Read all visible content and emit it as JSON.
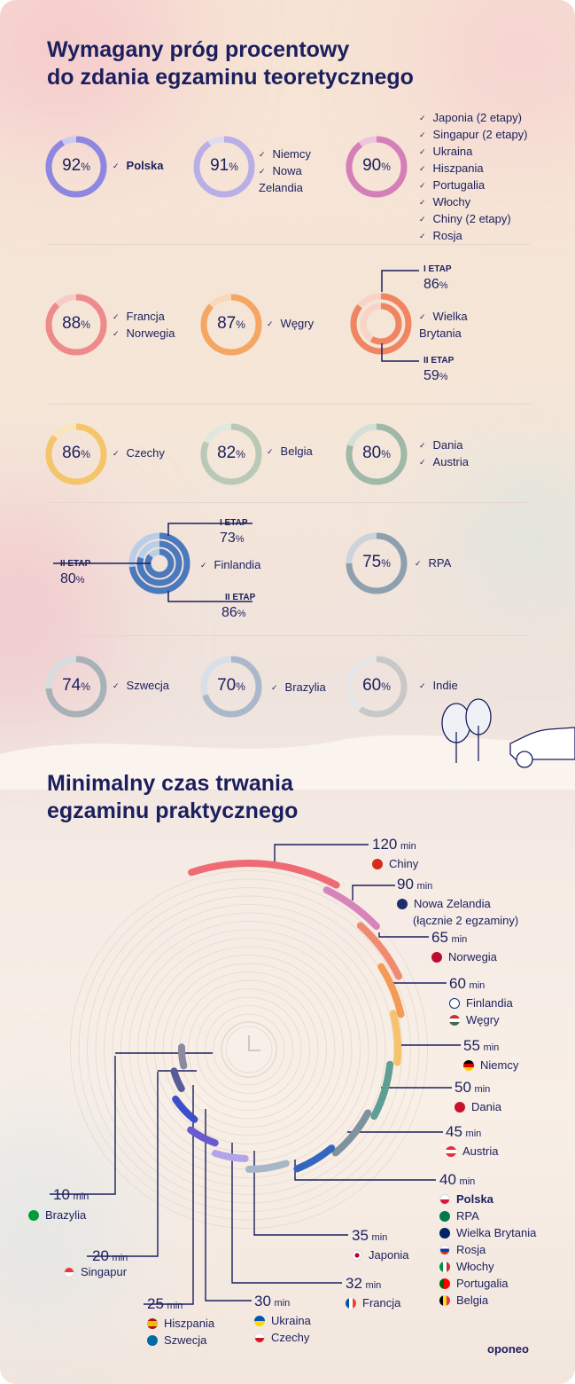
{
  "section1": {
    "title_line1": "Wymagany próg procentowy",
    "title_line2": "do zdania egzaminu teoretycznego"
  },
  "section2": {
    "title_line1": "Minimalny czas trwania",
    "title_line2": "egzaminu praktycznego"
  },
  "percent_unit": "%",
  "unit_min": "min",
  "stage1_label": "I ETAP",
  "stage2_label": "II ETAP",
  "logo": "oponeo",
  "chart_data": [
    {
      "type": "donut-grid",
      "title": "Wymagany próg procentowy do zdania egzaminu teoretycznego",
      "items": [
        {
          "value": 92,
          "countries": [
            "Polska"
          ],
          "color": "#8e86e0"
        },
        {
          "value": 91,
          "countries": [
            "Niemcy",
            "Nowa Zelandia"
          ],
          "color": "#b9aee6"
        },
        {
          "value": 90,
          "countries": [
            "Japonia (2 etapy)",
            "Singapur (2 etapy)",
            "Ukraina",
            "Hiszpania",
            "Portugalia",
            "Włochy",
            "Chiny (2 etapy)",
            "Rosja"
          ],
          "color": "#d57fb8"
        },
        {
          "value": 88,
          "countries": [
            "Francja",
            "Norwegia"
          ],
          "color": "#ef8a8a"
        },
        {
          "value": 87,
          "countries": [
            "Węgry"
          ],
          "color": "#f5a663"
        },
        {
          "values": [
            86,
            59
          ],
          "countries": [
            "Wielka Brytania"
          ],
          "color": "#ef8561"
        },
        {
          "value": 86,
          "countries": [
            "Czechy"
          ],
          "color": "#f5c56c"
        },
        {
          "value": 82,
          "countries": [
            "Belgia"
          ],
          "color": "#b9c9b5"
        },
        {
          "value": 80,
          "countries": [
            "Dania",
            "Austria"
          ],
          "color": "#9fb8a8"
        },
        {
          "values": [
            73,
            80,
            86
          ],
          "countries": [
            "Finlandia"
          ],
          "color": "#4a79be"
        },
        {
          "value": 75,
          "countries": [
            "RPA"
          ],
          "color": "#8ea0ad"
        },
        {
          "value": 74,
          "countries": [
            "Szwecja"
          ],
          "color": "#a7b1b8"
        },
        {
          "value": 70,
          "countries": [
            "Brazylia"
          ],
          "color": "#a9b8cb"
        },
        {
          "value": 60,
          "countries": [
            "Indie"
          ],
          "color": "#c8c8c8"
        }
      ]
    },
    {
      "type": "radial-bar",
      "title": "Minimalny czas trwania egzaminu praktycznego",
      "unit": "min",
      "items": [
        {
          "value": 120,
          "countries": [
            "Chiny"
          ],
          "color": "#ee6b74"
        },
        {
          "value": 90,
          "countries": [
            "Nowa Zelandia",
            "(łącznie 2 egzaminy)"
          ],
          "color": "#d784ba"
        },
        {
          "value": 65,
          "countries": [
            "Norwegia"
          ],
          "color": "#f08a70"
        },
        {
          "value": 60,
          "countries": [
            "Finlandia",
            "Węgry"
          ],
          "color": "#f39a57"
        },
        {
          "value": 55,
          "countries": [
            "Niemcy"
          ],
          "color": "#f6c26c"
        },
        {
          "value": 50,
          "countries": [
            "Dania"
          ],
          "color": "#5f9e93"
        },
        {
          "value": 45,
          "countries": [
            "Austria"
          ],
          "color": "#7f939e"
        },
        {
          "value": 40,
          "countries": [
            "Polska",
            "RPA",
            "Wielka Brytania",
            "Rosja",
            "Włochy",
            "Portugalia",
            "Belgia"
          ],
          "color": "#3466c0"
        },
        {
          "value": 35,
          "countries": [
            "Japonia"
          ],
          "color": "#a7b7c7"
        },
        {
          "value": 32,
          "countries": [
            "Francja"
          ],
          "color": "#b2a4e8"
        },
        {
          "value": 30,
          "countries": [
            "Ukraina",
            "Czechy"
          ],
          "color": "#6a5ad1"
        },
        {
          "value": 25,
          "countries": [
            "Hiszpania",
            "Szwecja"
          ],
          "color": "#3d4fc8"
        },
        {
          "value": 20,
          "countries": [
            "Singapur"
          ],
          "color": "#575c98"
        },
        {
          "value": 10,
          "countries": [
            "Brazylia"
          ],
          "color": "#8a8aa0"
        }
      ]
    }
  ]
}
